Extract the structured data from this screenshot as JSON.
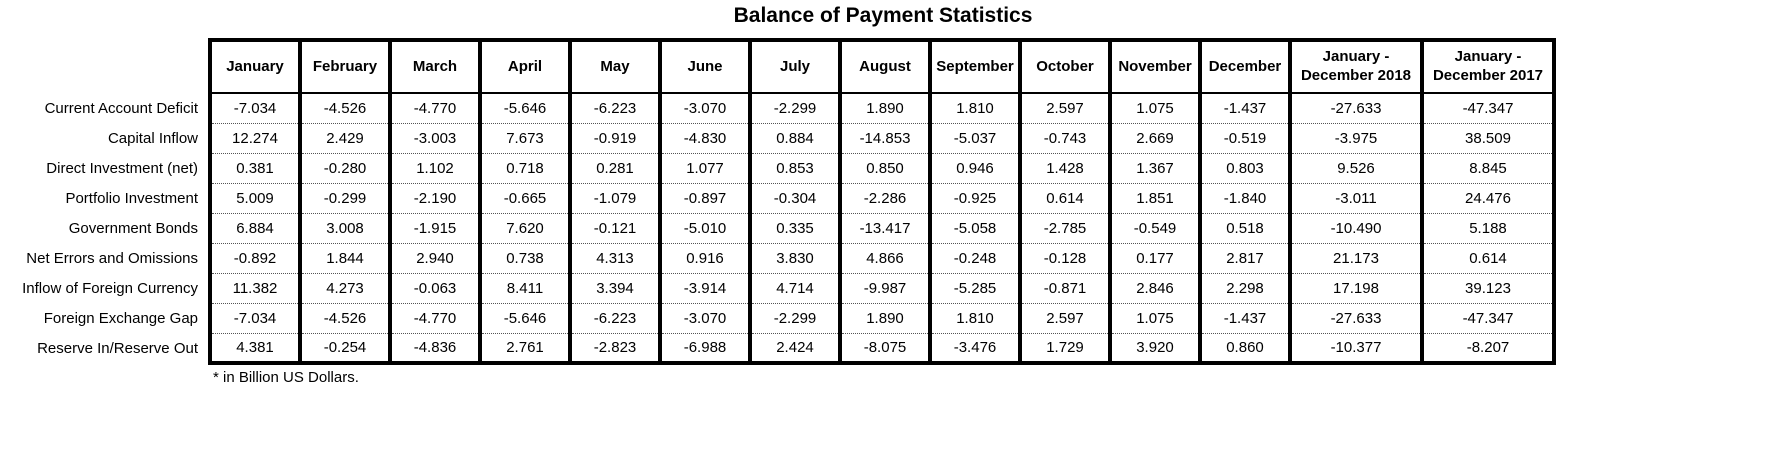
{
  "title": "Balance of Payment Statistics",
  "footnote": "* in Billion US Dollars.",
  "chart_data": {
    "type": "table",
    "title": "Balance of Payment Statistics",
    "unit_note": "* in Billion US Dollars.",
    "columns": [
      "January",
      "February",
      "March",
      "April",
      "May",
      "June",
      "July",
      "August",
      "September",
      "October",
      "November",
      "December",
      "January - December 2018",
      "January - December 2017"
    ],
    "rows": [
      {
        "label": "Current Account Deficit",
        "values": [
          "-7.034",
          "-4.526",
          "-4.770",
          "-5.646",
          "-6.223",
          "-3.070",
          "-2.299",
          "1.890",
          "1.810",
          "2.597",
          "1.075",
          "-1.437",
          "-27.633",
          "-47.347"
        ]
      },
      {
        "label": "Capital Inflow",
        "values": [
          "12.274",
          "2.429",
          "-3.003",
          "7.673",
          "-0.919",
          "-4.830",
          "0.884",
          "-14.853",
          "-5.037",
          "-0.743",
          "2.669",
          "-0.519",
          "-3.975",
          "38.509"
        ]
      },
      {
        "label": "Direct Investment (net)",
        "values": [
          "0.381",
          "-0.280",
          "1.102",
          "0.718",
          "0.281",
          "1.077",
          "0.853",
          "0.850",
          "0.946",
          "1.428",
          "1.367",
          "0.803",
          "9.526",
          "8.845"
        ]
      },
      {
        "label": "Portfolio Investment",
        "values": [
          "5.009",
          "-0.299",
          "-2.190",
          "-0.665",
          "-1.079",
          "-0.897",
          "-0.304",
          "-2.286",
          "-0.925",
          "0.614",
          "1.851",
          "-1.840",
          "-3.011",
          "24.476"
        ]
      },
      {
        "label": "Government Bonds",
        "values": [
          "6.884",
          "3.008",
          "-1.915",
          "7.620",
          "-0.121",
          "-5.010",
          "0.335",
          "-13.417",
          "-5.058",
          "-2.785",
          "-0.549",
          "0.518",
          "-10.490",
          "5.188"
        ]
      },
      {
        "label": "Net Errors and Omissions",
        "values": [
          "-0.892",
          "1.844",
          "2.940",
          "0.738",
          "4.313",
          "0.916",
          "3.830",
          "4.866",
          "-0.248",
          "-0.128",
          "0.177",
          "2.817",
          "21.173",
          "0.614"
        ]
      },
      {
        "label": "Inflow of Foreign Currency",
        "values": [
          "11.382",
          "4.273",
          "-0.063",
          "8.411",
          "3.394",
          "-3.914",
          "4.714",
          "-9.987",
          "-5.285",
          "-0.871",
          "2.846",
          "2.298",
          "17.198",
          "39.123"
        ]
      },
      {
        "label": "Foreign Exchange Gap",
        "values": [
          "-7.034",
          "-4.526",
          "-4.770",
          "-5.646",
          "-6.223",
          "-3.070",
          "-2.299",
          "1.890",
          "1.810",
          "2.597",
          "1.075",
          "-1.437",
          "-27.633",
          "-47.347"
        ]
      },
      {
        "label": "Reserve In/Reserve Out",
        "values": [
          "4.381",
          "-0.254",
          "-4.836",
          "2.761",
          "-2.823",
          "-6.988",
          "2.424",
          "-8.075",
          "-3.476",
          "1.729",
          "3.920",
          "0.860",
          "-10.377",
          "-8.207"
        ]
      }
    ]
  }
}
